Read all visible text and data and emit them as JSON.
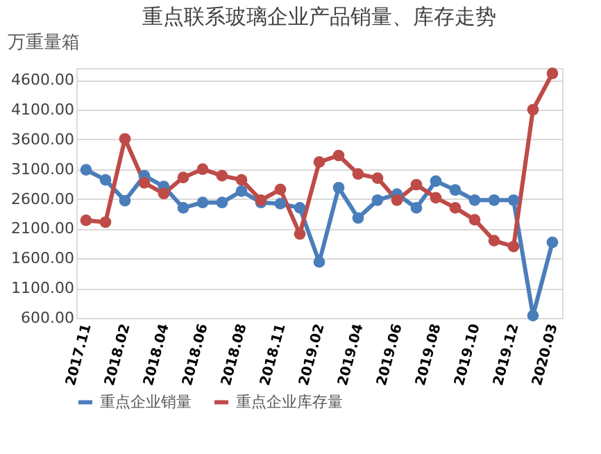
{
  "chart_data": {
    "type": "line",
    "title": "重点联系玻璃企业产品销量、库存走势",
    "ylabel": "万重量箱",
    "categories": [
      "2017.11",
      null,
      "2018.02",
      null,
      "2018.04",
      null,
      "2018.06",
      null,
      "2018.08",
      null,
      "2018.11",
      null,
      "2019.02",
      null,
      "2019.04",
      null,
      "2019.06",
      null,
      "2019.08",
      null,
      "2019.10",
      null,
      "2019.12",
      null,
      "2020.03"
    ],
    "series": [
      {
        "name": "重点企业销量",
        "color": "#4a7ebb",
        "values": [
          3090,
          2920,
          2570,
          2990,
          2810,
          2450,
          2540,
          2540,
          2730,
          2540,
          2520,
          2450,
          1540,
          2790,
          2280,
          2580,
          2680,
          2450,
          2900,
          2750,
          2580,
          2580,
          2580,
          640,
          1870
        ]
      },
      {
        "name": "重点企业库存量",
        "color": "#be4b48",
        "values": [
          2240,
          2210,
          3610,
          2870,
          2690,
          2960,
          3100,
          2990,
          2920,
          2580,
          2760,
          2010,
          3220,
          3330,
          3020,
          2950,
          2580,
          2840,
          2620,
          2450,
          2250,
          1900,
          1800,
          4100,
          4710
        ]
      }
    ],
    "ylim": [
      600,
      4800
    ],
    "yticks": [
      {
        "value": 600,
        "label": "600.00"
      },
      {
        "value": 1100,
        "label": "1100.00"
      },
      {
        "value": 1600,
        "label": "1600.00"
      },
      {
        "value": 2100,
        "label": "2100.00"
      },
      {
        "value": 2600,
        "label": "2600.00"
      },
      {
        "value": 3100,
        "label": "3100.00"
      },
      {
        "value": 3600,
        "label": "3600.00"
      },
      {
        "value": 4100,
        "label": "4100.00"
      },
      {
        "value": 4600,
        "label": "4600.00"
      }
    ],
    "grid": "y",
    "legend": "bottom",
    "marker": "circle",
    "line_style": "solid"
  }
}
